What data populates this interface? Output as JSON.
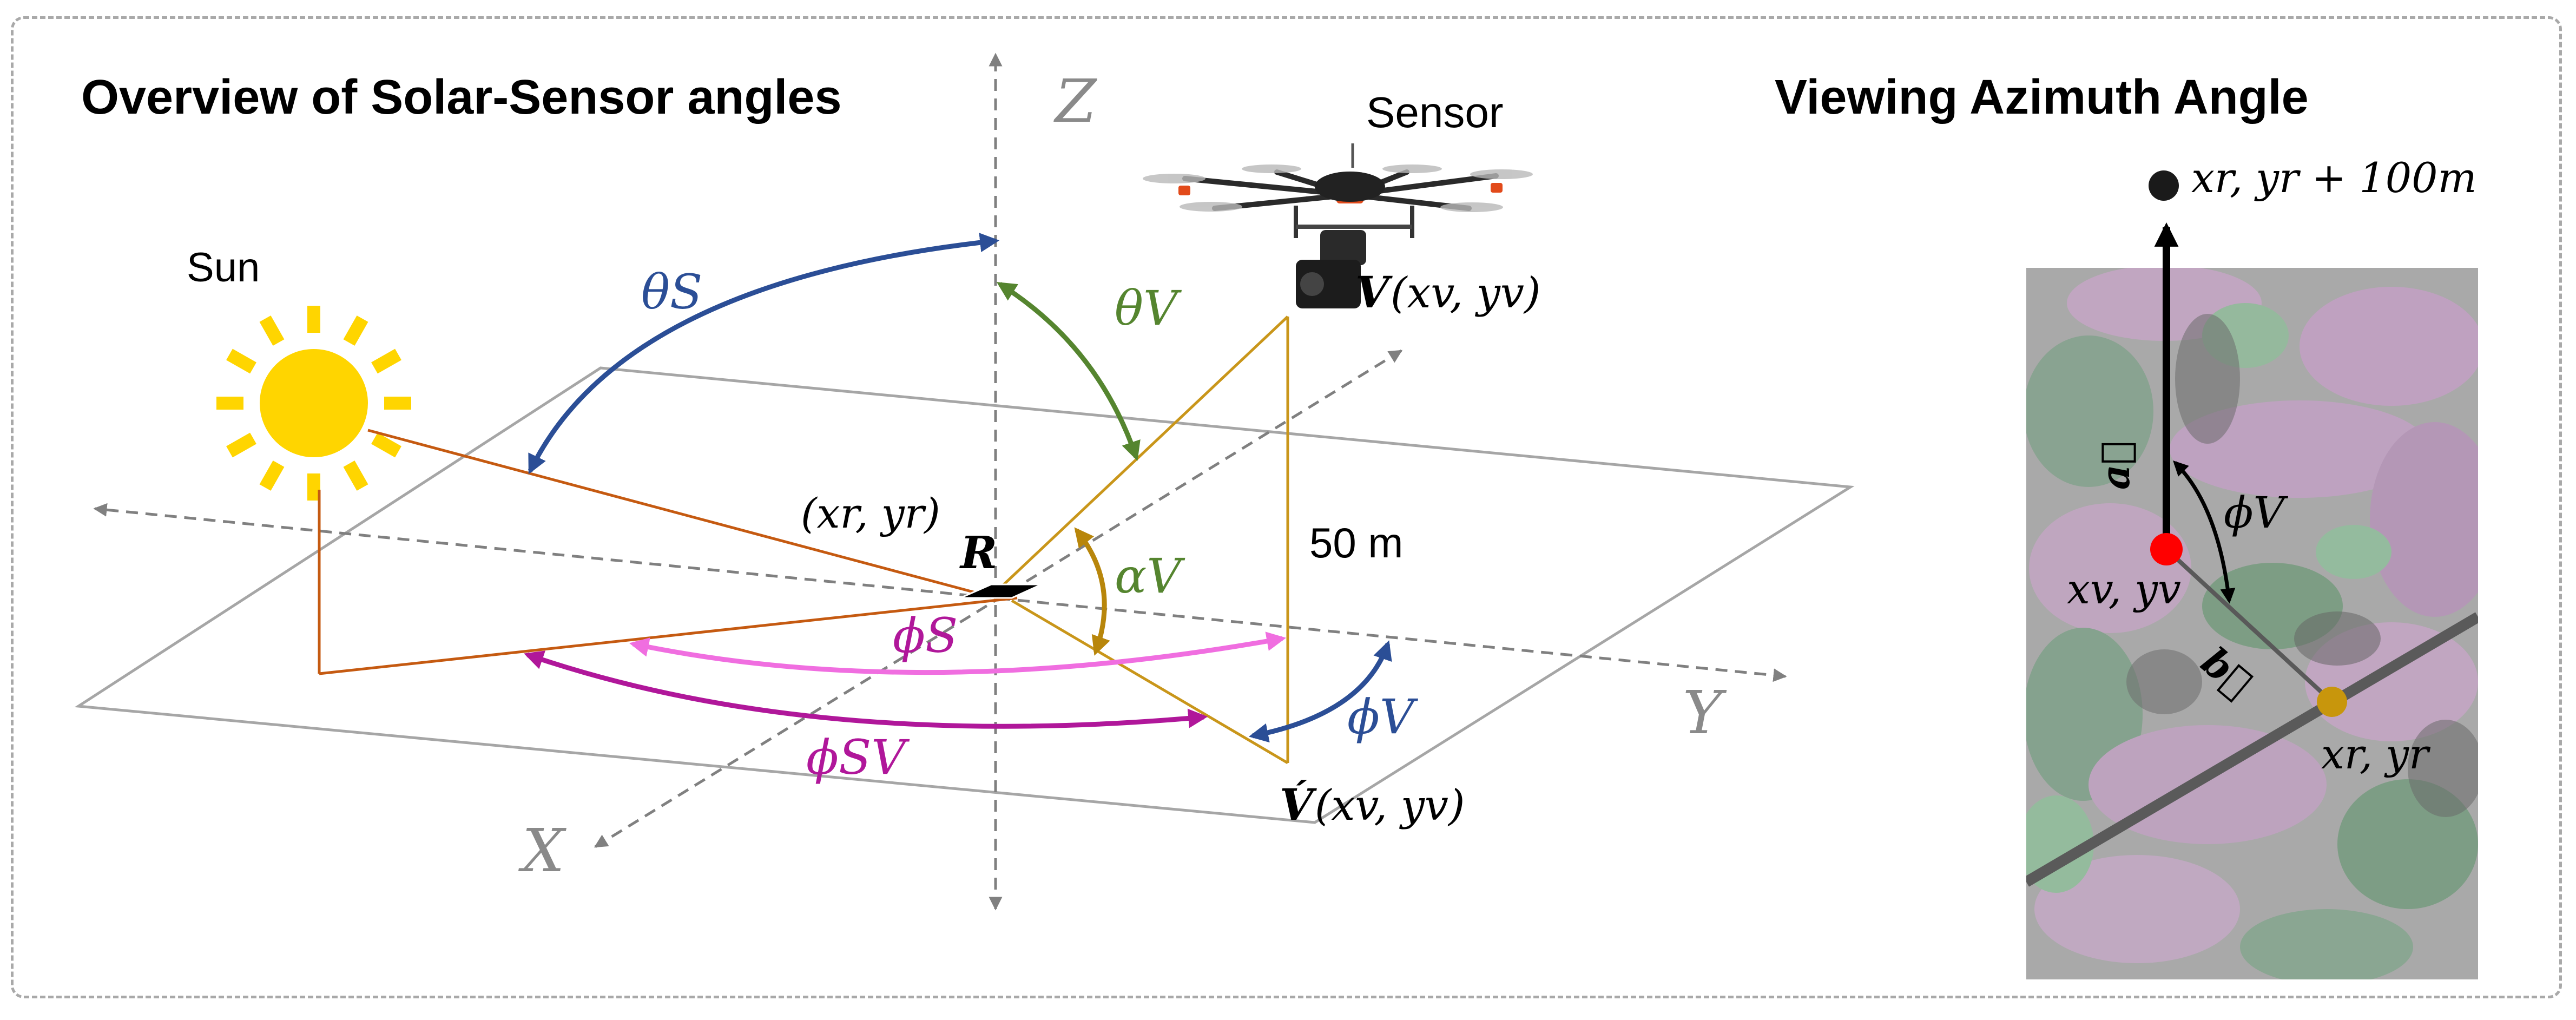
{
  "left_title": "Overview of Solar-Sensor angles",
  "right_title": "Viewing Azimuth Angle",
  "labels": {
    "sun": "Sun",
    "sensor": "Sensor",
    "axis_z": "Z",
    "axis_y": "Y",
    "axis_x": "X",
    "theta_s": "θS",
    "theta_v": "θV",
    "alpha_v": "αV",
    "phi_s": "ϕS",
    "phi_v": "ϕV",
    "phi_sv": "ϕSV",
    "reference_point": "R",
    "reference_coords": "(xr, yr)",
    "sensor_point": "V",
    "sensor_coords": "(xv, yv)",
    "projected_point": "V́",
    "projected_coords": "(xv, yv)",
    "height": "50 m"
  },
  "inset": {
    "north_point": "xr, yr + 100m",
    "vector_a": "a⃗",
    "vector_b": "b⃗",
    "sensor_coords": "xv, yv",
    "reference_coords": "xr, yr",
    "phi_v": "ϕV"
  },
  "colors": {
    "theta_s_arrow": "#2b4e96",
    "theta_v_arrow": "#55852f",
    "alpha_v_arrow": "#b8860b",
    "phi_s_arrow": "#f06ee0",
    "phi_sv_arrow": "#b0179a",
    "phi_v_arrow": "#2b4e96",
    "sun_lines": "#c55a11",
    "sensor_lines": "#c9961a",
    "sun_fill": "#ffd500",
    "sensor_point_inset": "#ff0000",
    "reference_point_inset": "#c8960c"
  }
}
